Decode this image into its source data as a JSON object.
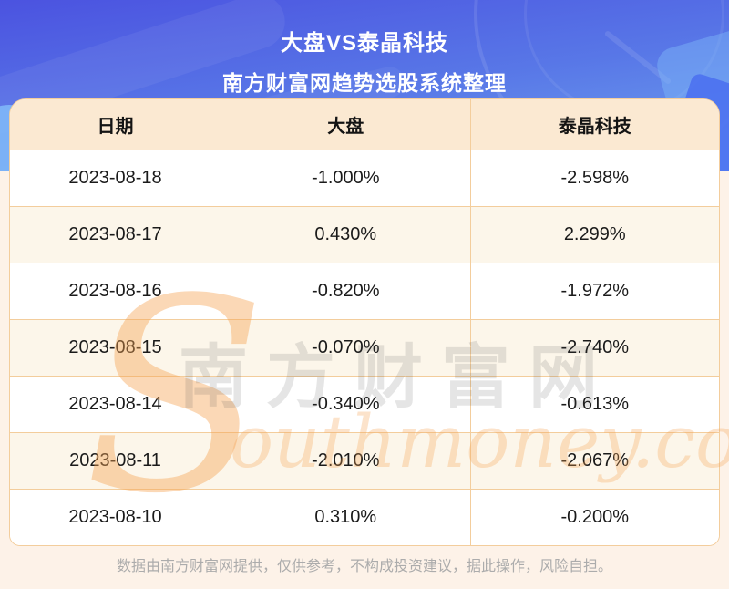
{
  "chart_data": {
    "type": "table",
    "title": "大盘VS泰晶科技",
    "subtitle": "南方财富网趋势选股系统整理",
    "columns": [
      "日期",
      "大盘",
      "泰晶科技"
    ],
    "rows": [
      [
        "2023-08-18",
        "-1.000%",
        "-2.598%"
      ],
      [
        "2023-08-17",
        "0.430%",
        "2.299%"
      ],
      [
        "2023-08-16",
        "-0.820%",
        "-1.972%"
      ],
      [
        "2023-08-15",
        "-0.070%",
        "-2.740%"
      ],
      [
        "2023-08-14",
        "-0.340%",
        "-0.613%"
      ],
      [
        "2023-08-11",
        "-2.010%",
        "-2.067%"
      ],
      [
        "2023-08-10",
        "0.310%",
        "-0.200%"
      ]
    ],
    "layout_hints": {
      "alternating_rows": true,
      "header_background": "#FBE9D2",
      "alt_row_background": "#FCF6EA",
      "grid": true
    }
  },
  "watermark": {
    "big_letter": "S",
    "cn_text": "南方财富网",
    "latin_text": "outhmoney.com"
  },
  "footer": {
    "disclaimer": "数据由南方财富网提供，仅供参考，不构成投资建议，据此操作，风险自担。"
  },
  "colors": {
    "banner_gradient_top": "#4B53E0",
    "banner_gradient_bottom": "#6FA3EF",
    "accent_light_blue": "#7FB7F8",
    "accent_bright_blue": "#4A6FF0",
    "page_background": "#FDF2E8",
    "table_border": "#F3CD9C",
    "table_header_bg": "#FBE9D2",
    "row_alt_bg": "#FCF6EA",
    "text_dark": "#1A1A1A",
    "footer_text": "#ACACAC",
    "watermark_orange": "#F7A95F"
  }
}
